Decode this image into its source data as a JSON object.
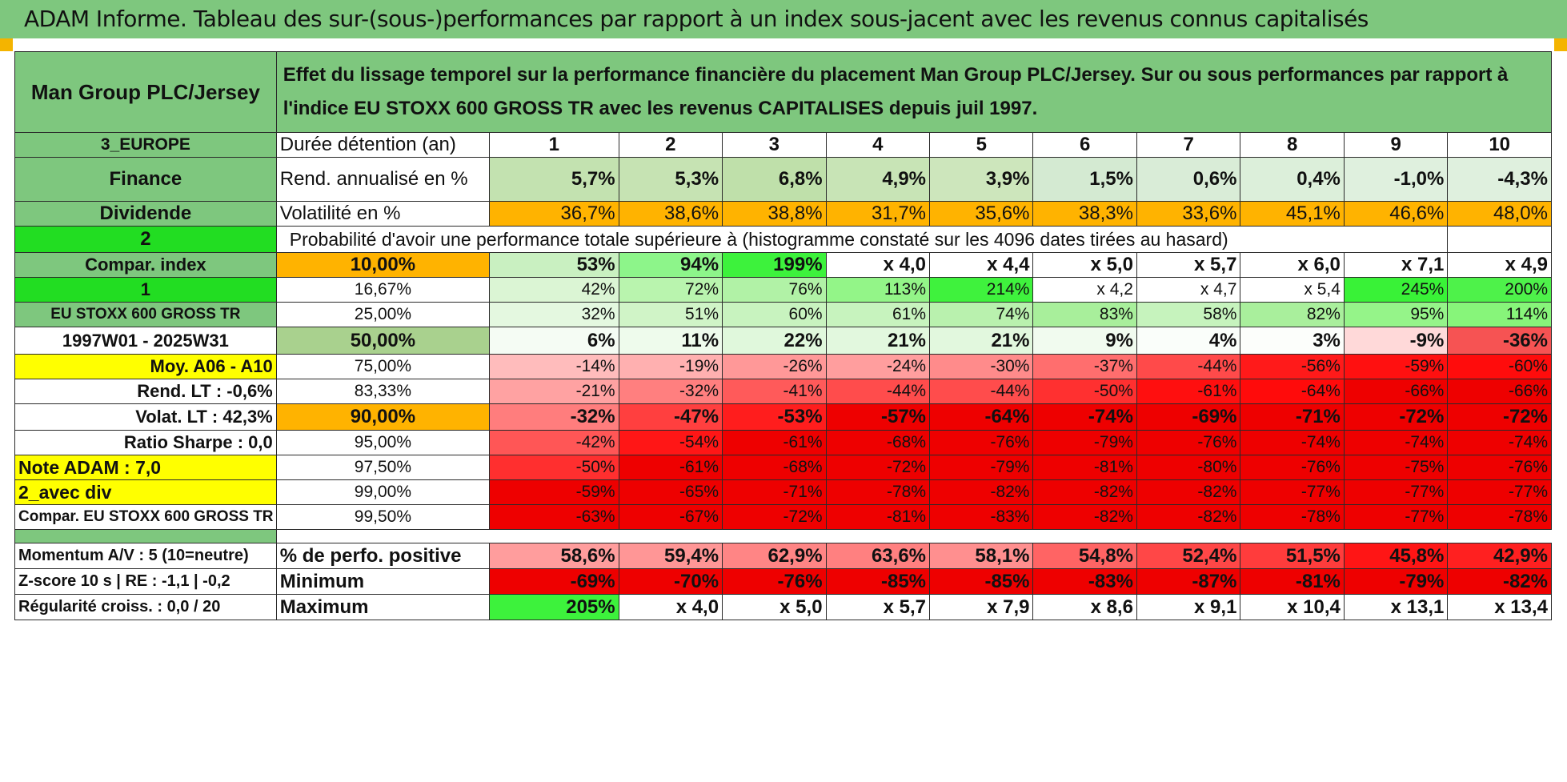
{
  "banner": "ADAM Informe. Tableau des sur-(sous-)performances par rapport à un index sous-jacent avec les revenus connus capitalisés",
  "header": {
    "name": "Man Group PLC/Jersey",
    "description": "Effet du lissage temporel sur la performance financière du placement Man Group PLC/Jersey. Sur ou sous performances par rapport à l'indice EU STOXX 600 GROSS TR avec les revenus CAPITALISES depuis juil 1997."
  },
  "durations": [
    "1",
    "2",
    "3",
    "4",
    "5",
    "6",
    "7",
    "8",
    "9",
    "10"
  ],
  "rows_top": [
    {
      "left": "3_EUROPE",
      "label": "Durée détention (an)"
    },
    {
      "left": "Finance",
      "label": "Rend. annualisé en %",
      "values": [
        "5,7%",
        "5,3%",
        "6,8%",
        "4,9%",
        "3,9%",
        "1,5%",
        "0,6%",
        "0,4%",
        "-1,0%",
        "-4,3%"
      ]
    },
    {
      "left": "Dividende",
      "label": "Volatilité en %",
      "values": [
        "36,7%",
        "38,6%",
        "38,8%",
        "31,7%",
        "35,6%",
        "38,3%",
        "33,6%",
        "45,1%",
        "46,6%",
        "48,0%"
      ]
    }
  ],
  "prob_row": {
    "left": "2",
    "text": "Probabilité d'avoir une performance totale supérieure à (histogramme constaté sur les 4096 dates tirées au hasard)"
  },
  "prob_rows": [
    {
      "left": "Compar. index",
      "pct": "10,00%",
      "values": [
        "53%",
        "94%",
        "199%",
        "x 4,0",
        "x 4,4",
        "x 5,0",
        "x 5,7",
        "x 6,0",
        "x 7,1",
        "x 4,9"
      ]
    },
    {
      "left": "1",
      "pct": "16,67%",
      "values": [
        "42%",
        "72%",
        "76%",
        "113%",
        "214%",
        "x 4,2",
        "x 4,7",
        "x 5,4",
        "245%",
        "200%"
      ]
    },
    {
      "left": "EU STOXX 600 GROSS TR",
      "pct": "25,00%",
      "values": [
        "32%",
        "51%",
        "60%",
        "61%",
        "74%",
        "83%",
        "58%",
        "82%",
        "95%",
        "114%"
      ]
    },
    {
      "left": "1997W01 - 2025W31",
      "pct": "50,00%",
      "values": [
        "6%",
        "11%",
        "22%",
        "21%",
        "21%",
        "9%",
        "4%",
        "3%",
        "-9%",
        "-36%"
      ]
    },
    {
      "left": "Moy. A06 - A10",
      "pct": "75,00%",
      "values": [
        "-14%",
        "-19%",
        "-26%",
        "-24%",
        "-30%",
        "-37%",
        "-44%",
        "-56%",
        "-59%",
        "-60%"
      ]
    },
    {
      "left": "Rend. LT :    -0,6%",
      "pct": "83,33%",
      "values": [
        "-21%",
        "-32%",
        "-41%",
        "-44%",
        "-44%",
        "-50%",
        "-61%",
        "-64%",
        "-66%",
        "-66%"
      ]
    },
    {
      "left": "Volat. LT :    42,3%",
      "pct": "90,00%",
      "values": [
        "-32%",
        "-47%",
        "-53%",
        "-57%",
        "-64%",
        "-74%",
        "-69%",
        "-71%",
        "-72%",
        "-72%"
      ]
    },
    {
      "left": "Ratio Sharpe :     0,0",
      "pct": "95,00%",
      "values": [
        "-42%",
        "-54%",
        "-61%",
        "-68%",
        "-76%",
        "-79%",
        "-76%",
        "-74%",
        "-74%",
        "-74%"
      ]
    },
    {
      "left": "Note ADAM : 7,0",
      "pct": "97,50%",
      "values": [
        "-50%",
        "-61%",
        "-68%",
        "-72%",
        "-79%",
        "-81%",
        "-80%",
        "-76%",
        "-75%",
        "-76%"
      ]
    },
    {
      "left": "2_avec div",
      "pct": "99,00%",
      "values": [
        "-59%",
        "-65%",
        "-71%",
        "-78%",
        "-82%",
        "-82%",
        "-82%",
        "-77%",
        "-77%",
        "-77%"
      ]
    },
    {
      "left": "Compar. EU STOXX 600 GROSS TR",
      "pct": "99,50%",
      "values": [
        "-63%",
        "-67%",
        "-72%",
        "-81%",
        "-83%",
        "-82%",
        "-82%",
        "-78%",
        "-77%",
        "-78%"
      ]
    }
  ],
  "bottom_rows": [
    {
      "left": "Momentum A/V : 5 (10=neutre)",
      "label": "% de perfo. positive",
      "values": [
        "58,6%",
        "59,4%",
        "62,9%",
        "63,6%",
        "58,1%",
        "54,8%",
        "52,4%",
        "51,5%",
        "45,8%",
        "42,9%"
      ]
    },
    {
      "left": "Z-score 10 s | RE : -1,1 | -0,2",
      "label": "Minimum",
      "values": [
        "-69%",
        "-70%",
        "-76%",
        "-85%",
        "-85%",
        "-83%",
        "-87%",
        "-81%",
        "-79%",
        "-82%"
      ]
    },
    {
      "left": "Régularité croiss. : 0,0 / 20",
      "label": "Maximum",
      "values": [
        "205%",
        "x 4,0",
        "x 5,0",
        "x 5,7",
        "x 7,9",
        "x 8,6",
        "x 9,1",
        "x 10,4",
        "x 13,1",
        "x 13,4"
      ]
    }
  ],
  "colors": {
    "header_green": "#7ec77e",
    "volatility_orange": "#ffb300",
    "bright_green": "#22dd22",
    "yellow": "#ffff00",
    "deep_red": "#ee0000",
    "label_red": "#e0202a"
  }
}
